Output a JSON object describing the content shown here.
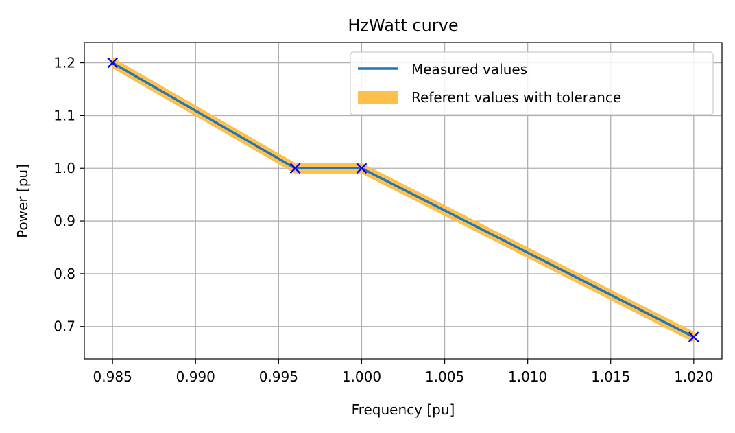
{
  "chart_data": {
    "type": "line",
    "title": "HzWatt curve",
    "xlabel": "Frequency [pu]",
    "ylabel": "Power [pu]",
    "xlim": [
      0.9833,
      1.0217
    ],
    "ylim": [
      0.6385,
      1.2385
    ],
    "xticks": [
      0.985,
      0.99,
      0.995,
      1.0,
      1.005,
      1.01,
      1.015,
      1.02
    ],
    "xtick_labels": [
      "0.985",
      "0.990",
      "0.995",
      "1.000",
      "1.005",
      "1.010",
      "1.015",
      "1.020"
    ],
    "yticks": [
      0.7,
      0.8,
      0.9,
      1.0,
      1.1,
      1.2
    ],
    "ytick_labels": [
      "0.7",
      "0.8",
      "0.9",
      "1.0",
      "1.1",
      "1.2"
    ],
    "grid": true,
    "legend_position": "top-right",
    "series": [
      {
        "name": "Measured values",
        "kind": "line",
        "color": "#1f77b4",
        "x": [
          0.985,
          0.996,
          1.0,
          1.02
        ],
        "y": [
          1.2,
          1.0,
          1.0,
          0.68
        ]
      },
      {
        "name": "Referent values with tolerance",
        "kind": "band",
        "color": "#ffbf4d",
        "x": [
          0.985,
          0.996,
          1.0,
          1.02
        ],
        "y": [
          1.2,
          1.0,
          1.0,
          0.68
        ],
        "tolerance": 0.008
      }
    ],
    "markers": {
      "symbol": "x",
      "color": "#0000ff",
      "x": [
        0.985,
        0.996,
        1.0,
        1.02
      ],
      "y": [
        1.2,
        1.0,
        1.0,
        0.68
      ]
    }
  },
  "colors": {
    "grid": "#b0b0b0",
    "axis": "#000000"
  }
}
